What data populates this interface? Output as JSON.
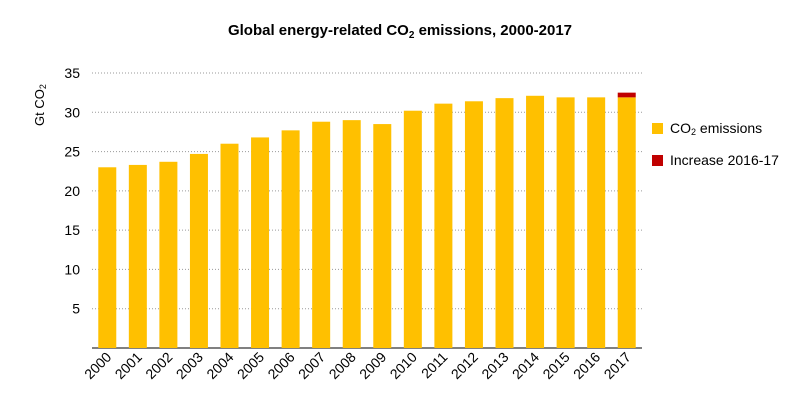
{
  "chart_data": {
    "type": "bar",
    "title_prefix": "Global energy-related CO",
    "title_sub": "2",
    "title_suffix": " emissions, 2000-2017",
    "ylabel_prefix": "Gt CO",
    "ylabel_sub": "2",
    "xlabel": "",
    "categories": [
      "2000",
      "2001",
      "2002",
      "2003",
      "2004",
      "2005",
      "2006",
      "2007",
      "2008",
      "2009",
      "2010",
      "2011",
      "2012",
      "2013",
      "2014",
      "2015",
      "2016",
      "2017"
    ],
    "series": [
      {
        "name_prefix": "CO",
        "name_sub": "2",
        "name_suffix": " emissions",
        "color": "#FFC000",
        "values": [
          23.0,
          23.3,
          23.7,
          24.7,
          26.0,
          26.8,
          27.7,
          28.8,
          29.0,
          28.5,
          30.2,
          31.1,
          31.4,
          31.8,
          32.1,
          31.9,
          31.9,
          31.9
        ]
      },
      {
        "name": "Increase 2016-17",
        "color": "#C00000",
        "values": [
          0,
          0,
          0,
          0,
          0,
          0,
          0,
          0,
          0,
          0,
          0,
          0,
          0,
          0,
          0,
          0,
          0,
          0.6
        ]
      }
    ],
    "yticks": [
      5,
      10,
      15,
      20,
      25,
      30,
      35
    ],
    "ylim": [
      0,
      35
    ],
    "grid": "horizontal-dotted",
    "legend_position": "right"
  }
}
